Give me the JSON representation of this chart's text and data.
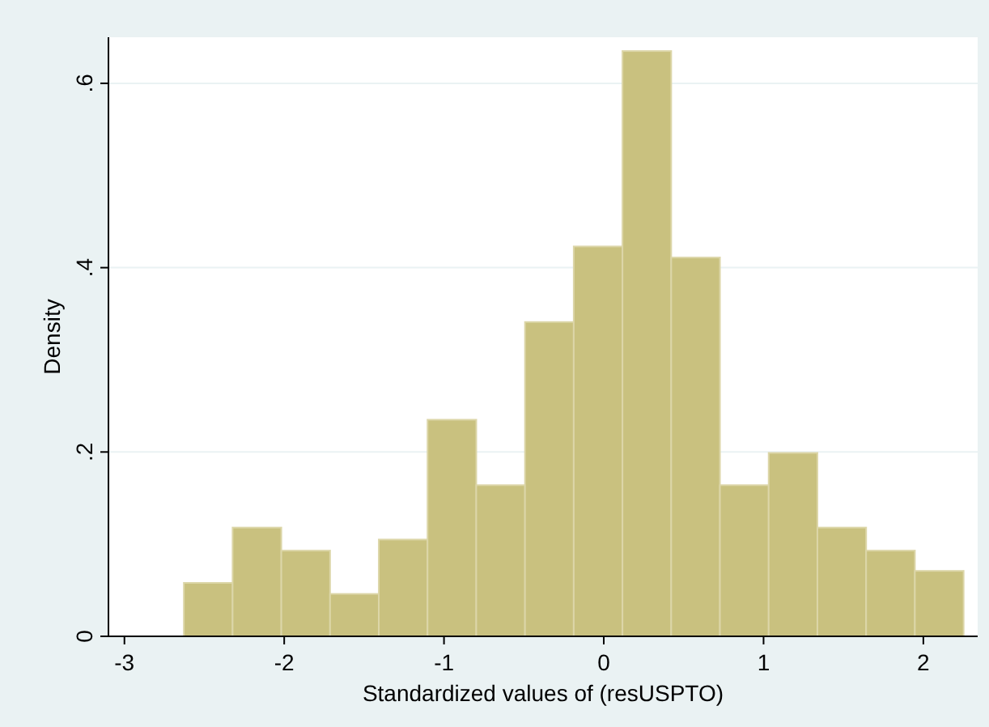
{
  "chart_data": {
    "type": "histogram",
    "xlabel": "Standardized values of (resUSPTO)",
    "ylabel": "Density",
    "bins": [
      -2.628,
      -2.323,
      -2.018,
      -1.713,
      -1.408,
      -1.103,
      -0.798,
      -0.493,
      -0.188,
      0.117,
      0.422,
      0.727,
      1.032,
      1.337,
      1.642,
      1.947,
      2.252
    ],
    "values": [
      0.058,
      0.118,
      0.093,
      0.046,
      0.105,
      0.235,
      0.164,
      0.341,
      0.423,
      0.635,
      0.411,
      0.164,
      0.199,
      0.118,
      0.093,
      0.071
    ],
    "color": "#c9c17f",
    "xlim": [
      -3.1,
      2.34
    ],
    "xticks": [
      -3,
      -2,
      -1,
      0,
      1,
      2
    ],
    "ylim": [
      0,
      0.65
    ],
    "yticks": [
      0,
      {
        "value": 0.2,
        "label": ".2"
      },
      {
        "value": 0.4,
        "label": ".4"
      },
      {
        "value": 0.6,
        "label": ".6"
      }
    ],
    "grid": "y"
  }
}
